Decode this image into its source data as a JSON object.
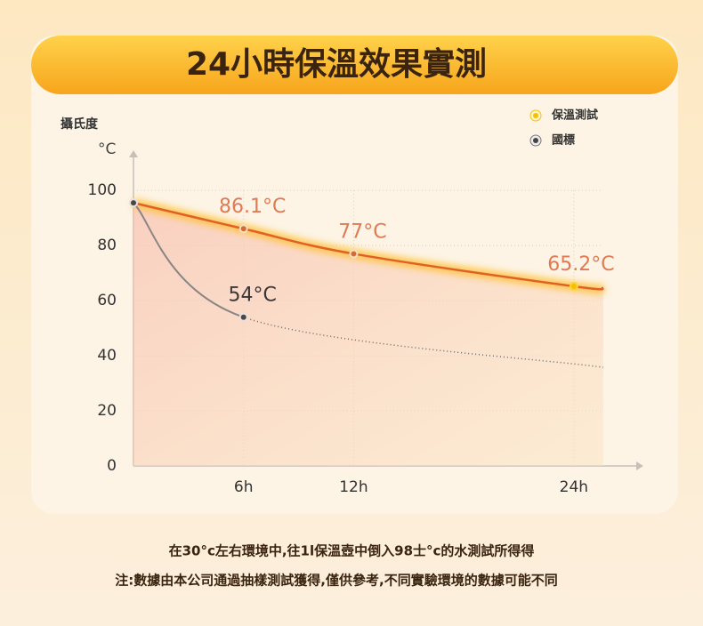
{
  "chart_data": {
    "type": "line",
    "title": "24小時保溫效果實測",
    "y_label": "攝氏度",
    "y_unit": "°C",
    "xlim": [
      0,
      27.4
    ],
    "ylim": [
      0,
      112
    ],
    "xticks": [
      {
        "value": 6,
        "label": "6h"
      },
      {
        "value": 12,
        "label": "12h"
      },
      {
        "value": 24,
        "label": "24h"
      }
    ],
    "yticks": [
      0,
      20,
      40,
      60,
      80,
      100
    ],
    "grid": true,
    "legend": "top-right",
    "series": [
      {
        "name": "保溫測試",
        "color": "#e0602a",
        "x": [
          0,
          6,
          12,
          24,
          25.6
        ],
        "values": [
          95.5,
          86.1,
          77,
          65.2,
          64.6
        ],
        "value_labels": [
          null,
          "86.1°C",
          "77°C",
          "65.2°C",
          null
        ]
      },
      {
        "name": "國標",
        "color": "#8a8585",
        "x": [
          0,
          6,
          25.6
        ],
        "values": [
          95.5,
          54,
          35.8
        ],
        "value_labels": [
          null,
          "54°C",
          null
        ],
        "dotted_from": 6
      }
    ],
    "notes": [
      "在30°c左右環境中,往1l保溫壺中倒入98士°c的水測試所得得",
      "注:數據由本公司通過抽樣測試獲得,僅供參考,不同實驗環境的數據可能不同"
    ]
  }
}
